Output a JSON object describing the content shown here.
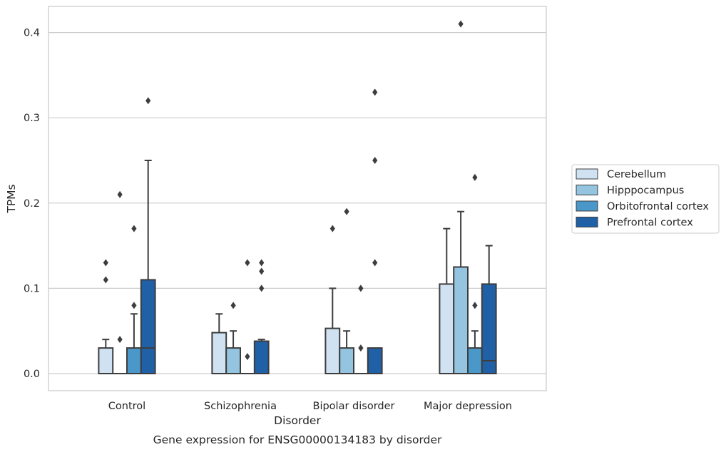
{
  "chart_data": {
    "type": "box",
    "title": "",
    "caption": "Gene expression for ENSG00000134183 by disorder",
    "xlabel": "Disorder",
    "ylabel": "TPMs",
    "categories": [
      "Control",
      "Schizophrenia",
      "Bipolar disorder",
      "Major depression"
    ],
    "ylim": [
      -0.02,
      0.43
    ],
    "yticks": [
      0.0,
      0.1,
      0.2,
      0.3,
      0.4
    ],
    "ytick_labels": [
      "0.0",
      "0.1",
      "0.2",
      "0.3",
      "0.4"
    ],
    "grid": true,
    "legend_position": "right",
    "series": [
      {
        "name": "Cerebellum",
        "color": "#d0e1f2",
        "boxes": [
          {
            "q1": 0.0,
            "median": 0.0,
            "q3": 0.03,
            "whisker_low": 0.0,
            "whisker_high": 0.04,
            "outliers": [
              0.11,
              0.13
            ]
          },
          {
            "q1": 0.0,
            "median": 0.0,
            "q3": 0.048,
            "whisker_low": 0.0,
            "whisker_high": 0.07,
            "outliers": []
          },
          {
            "q1": 0.0,
            "median": 0.0,
            "q3": 0.053,
            "whisker_low": 0.0,
            "whisker_high": 0.1,
            "outliers": [
              0.17
            ]
          },
          {
            "q1": 0.0,
            "median": 0.0,
            "q3": 0.105,
            "whisker_low": 0.0,
            "whisker_high": 0.17,
            "outliers": []
          }
        ]
      },
      {
        "name": "Hipppocampus",
        "color": "#94c4df",
        "boxes": [
          {
            "q1": 0.0,
            "median": 0.0,
            "q3": 0.0,
            "whisker_low": 0.0,
            "whisker_high": 0.0,
            "outliers": [
              0.04,
              0.21
            ]
          },
          {
            "q1": 0.0,
            "median": 0.0,
            "q3": 0.03,
            "whisker_low": 0.0,
            "whisker_high": 0.05,
            "outliers": [
              0.08
            ]
          },
          {
            "q1": 0.0,
            "median": 0.0,
            "q3": 0.03,
            "whisker_low": 0.0,
            "whisker_high": 0.05,
            "outliers": [
              0.19
            ]
          },
          {
            "q1": 0.0,
            "median": 0.0,
            "q3": 0.125,
            "whisker_low": 0.0,
            "whisker_high": 0.19,
            "outliers": [
              0.41
            ]
          }
        ]
      },
      {
        "name": "Orbitofrontal cortex",
        "color": "#4a98c9",
        "boxes": [
          {
            "q1": 0.0,
            "median": 0.0,
            "q3": 0.03,
            "whisker_low": 0.0,
            "whisker_high": 0.07,
            "outliers": [
              0.08,
              0.17
            ]
          },
          {
            "q1": 0.0,
            "median": 0.0,
            "q3": 0.0,
            "whisker_low": 0.0,
            "whisker_high": 0.0,
            "outliers": [
              0.02,
              0.13
            ]
          },
          {
            "q1": 0.0,
            "median": 0.0,
            "q3": 0.0,
            "whisker_low": 0.0,
            "whisker_high": 0.0,
            "outliers": [
              0.03,
              0.1
            ]
          },
          {
            "q1": 0.0,
            "median": 0.0,
            "q3": 0.03,
            "whisker_low": 0.0,
            "whisker_high": 0.05,
            "outliers": [
              0.08,
              0.23
            ]
          }
        ]
      },
      {
        "name": "Prefrontal cortex",
        "color": "#2060a6",
        "boxes": [
          {
            "q1": 0.0,
            "median": 0.03,
            "q3": 0.11,
            "whisker_low": 0.0,
            "whisker_high": 0.25,
            "outliers": [
              0.32
            ]
          },
          {
            "q1": 0.0,
            "median": 0.0,
            "q3": 0.038,
            "whisker_low": 0.0,
            "whisker_high": 0.04,
            "outliers": [
              0.1,
              0.12,
              0.13
            ]
          },
          {
            "q1": 0.0,
            "median": 0.0,
            "q3": 0.03,
            "whisker_low": 0.0,
            "whisker_high": 0.03,
            "outliers": [
              0.13,
              0.25,
              0.33
            ]
          },
          {
            "q1": 0.0,
            "median": 0.015,
            "q3": 0.105,
            "whisker_low": 0.0,
            "whisker_high": 0.15,
            "outliers": []
          }
        ]
      }
    ]
  }
}
